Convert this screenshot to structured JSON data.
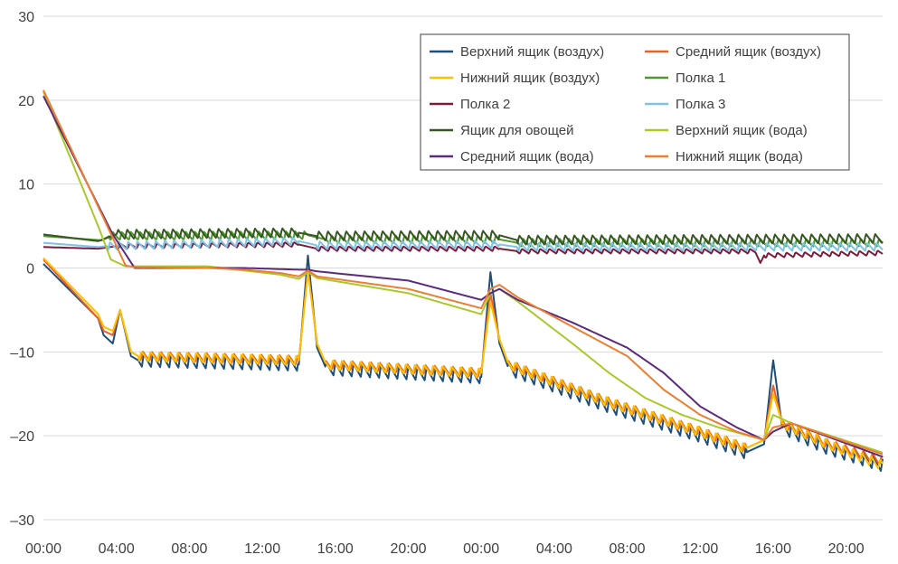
{
  "chart_data": {
    "type": "line",
    "title": "",
    "xlabel": "",
    "ylabel": "",
    "ylim": [
      -30,
      30
    ],
    "yticks": [
      -30,
      -20,
      -10,
      0,
      10,
      20,
      30
    ],
    "x_hours_range": [
      0,
      46
    ],
    "x_tick_labels": [
      "00:00",
      "04:00",
      "08:00",
      "12:00",
      "16:00",
      "20:00",
      "00:00",
      "04:00",
      "08:00",
      "12:00",
      "16:00",
      "20:00"
    ],
    "grid": "horizontal",
    "legend_placement": "top-right",
    "series": [
      {
        "name": "Верхний ящик (воздух)",
        "color": "#1f4e79",
        "points": [
          [
            0,
            0.5
          ],
          [
            3,
            -6
          ],
          [
            3.3,
            -8
          ],
          [
            3.8,
            -9
          ],
          [
            4.2,
            -5
          ],
          [
            4.8,
            -10.5
          ],
          [
            5.2,
            -11
          ],
          [
            14,
            -11.5
          ],
          [
            14.5,
            1.5
          ],
          [
            15,
            -9.5
          ],
          [
            15.5,
            -12
          ],
          [
            24,
            -13
          ],
          [
            24.5,
            -0.5
          ],
          [
            25,
            -9
          ],
          [
            25.5,
            -12
          ],
          [
            31,
            -16.5
          ],
          [
            36,
            -20
          ],
          [
            38.5,
            -22
          ],
          [
            39.5,
            -21
          ],
          [
            40,
            -11
          ],
          [
            40.5,
            -19
          ],
          [
            43,
            -21.5
          ],
          [
            46,
            -23.5
          ]
        ],
        "osc": 1.5,
        "osc_ranges": [
          [
            5.2,
            14
          ],
          [
            15.5,
            24
          ],
          [
            25.5,
            38.5
          ],
          [
            40.5,
            46
          ]
        ]
      },
      {
        "name": "Средний ящик (воздух)",
        "color": "#e8622a",
        "points": [
          [
            0,
            1
          ],
          [
            3,
            -6
          ],
          [
            3.3,
            -7.5
          ],
          [
            3.8,
            -8
          ],
          [
            4.2,
            -5
          ],
          [
            4.8,
            -10
          ],
          [
            5.2,
            -10.5
          ],
          [
            14,
            -11
          ],
          [
            14.5,
            -0.3
          ],
          [
            15,
            -9
          ],
          [
            15.5,
            -11.5
          ],
          [
            24,
            -12.5
          ],
          [
            24.5,
            -3
          ],
          [
            25,
            -8.5
          ],
          [
            25.5,
            -11.5
          ],
          [
            31,
            -16
          ],
          [
            36,
            -19.5
          ],
          [
            38.5,
            -21.5
          ],
          [
            39.5,
            -20.5
          ],
          [
            40,
            -14
          ],
          [
            40.5,
            -18.5
          ],
          [
            43,
            -21
          ],
          [
            46,
            -23
          ]
        ],
        "osc": 1.2,
        "osc_ranges": [
          [
            5.2,
            14
          ],
          [
            15.5,
            24
          ],
          [
            25.5,
            38.5
          ],
          [
            40.5,
            46
          ]
        ]
      },
      {
        "name": "Нижний ящик (воздух)",
        "color": "#ffc000",
        "points": [
          [
            0,
            1.2
          ],
          [
            3,
            -5.5
          ],
          [
            3.3,
            -7
          ],
          [
            3.8,
            -7.5
          ],
          [
            4.2,
            -5
          ],
          [
            4.8,
            -10
          ],
          [
            5.2,
            -10.5
          ],
          [
            14,
            -11
          ],
          [
            14.5,
            -0.5
          ],
          [
            15,
            -9
          ],
          [
            15.5,
            -11.5
          ],
          [
            24,
            -12.5
          ],
          [
            24.5,
            -4
          ],
          [
            25,
            -8.5
          ],
          [
            25.5,
            -11.5
          ],
          [
            31,
            -16
          ],
          [
            36,
            -19.5
          ],
          [
            38.5,
            -21.5
          ],
          [
            39.5,
            -20.5
          ],
          [
            40,
            -15
          ],
          [
            40.5,
            -18.5
          ],
          [
            43,
            -21
          ],
          [
            46,
            -23.5
          ]
        ],
        "osc": 1.2,
        "osc_ranges": [
          [
            5.2,
            14
          ],
          [
            15.5,
            24
          ],
          [
            25.5,
            38.5
          ],
          [
            40.5,
            46
          ]
        ]
      },
      {
        "name": "Полка 1",
        "color": "#4e9a2b",
        "points": [
          [
            0,
            3.8
          ],
          [
            3.2,
            3.3
          ],
          [
            3.6,
            3.8
          ],
          [
            14.5,
            3.9
          ],
          [
            15.5,
            3.4
          ],
          [
            25,
            3.4
          ],
          [
            26,
            3
          ],
          [
            46,
            3
          ]
        ],
        "osc": 1.0,
        "osc_ranges": [
          [
            3.6,
            14.5
          ],
          [
            15.5,
            25
          ],
          [
            26,
            46
          ]
        ]
      },
      {
        "name": "Полка 2",
        "color": "#7b1c3c",
        "points": [
          [
            0,
            2.5
          ],
          [
            3,
            2.3
          ],
          [
            4,
            2.6
          ],
          [
            14,
            2.8
          ],
          [
            15,
            2.3
          ],
          [
            25,
            2.3
          ],
          [
            26,
            2
          ],
          [
            39,
            2
          ],
          [
            39.3,
            0.6
          ],
          [
            39.5,
            1.5
          ],
          [
            46,
            1.8
          ]
        ],
        "osc": 0.6,
        "osc_ranges": [
          [
            4,
            14
          ],
          [
            15,
            25
          ],
          [
            26,
            39
          ],
          [
            39.5,
            46
          ]
        ]
      },
      {
        "name": "Полка 3",
        "color": "#7ec3e6",
        "points": [
          [
            0,
            3
          ],
          [
            3,
            2.5
          ],
          [
            3.5,
            2.6
          ],
          [
            14,
            3.2
          ],
          [
            15,
            2.7
          ],
          [
            25,
            2.8
          ],
          [
            26,
            2.5
          ],
          [
            46,
            2.5
          ]
        ],
        "osc": 0.9,
        "osc_ranges": [
          [
            3.5,
            14
          ],
          [
            15,
            25
          ],
          [
            26,
            46
          ]
        ]
      },
      {
        "name": "Ящик для овощей",
        "color": "#375623",
        "points": [
          [
            0,
            4
          ],
          [
            3,
            3.2
          ],
          [
            4,
            4
          ],
          [
            14,
            4.2
          ],
          [
            15,
            3.8
          ],
          [
            25,
            3.9
          ],
          [
            26,
            3.3
          ],
          [
            46,
            3.5
          ]
        ],
        "osc": 1.2,
        "osc_ranges": [
          [
            4,
            14
          ],
          [
            15,
            25
          ],
          [
            26,
            46
          ]
        ]
      },
      {
        "name": "Верхний ящик (вода)",
        "color": "#a9c92a",
        "points": [
          [
            0,
            21
          ],
          [
            3,
            5
          ],
          [
            3.7,
            1
          ],
          [
            4.5,
            0.2
          ],
          [
            9,
            0.2
          ],
          [
            11,
            -0.3
          ],
          [
            13,
            -0.8
          ],
          [
            14,
            -1.3
          ],
          [
            14.5,
            -0.5
          ],
          [
            15,
            -1.2
          ],
          [
            20,
            -3
          ],
          [
            24,
            -5.5
          ],
          [
            24.5,
            -3
          ],
          [
            25,
            -2.5
          ],
          [
            26,
            -4
          ],
          [
            29,
            -9
          ],
          [
            31,
            -12.5
          ],
          [
            33,
            -15.5
          ],
          [
            35,
            -17.5
          ],
          [
            37,
            -19
          ],
          [
            39.5,
            -20.5
          ],
          [
            40,
            -17.5
          ],
          [
            41,
            -18.5
          ],
          [
            46,
            -22
          ]
        ]
      },
      {
        "name": "Средний ящик (вода)",
        "color": "#5b2a7a",
        "points": [
          [
            0,
            20.5
          ],
          [
            3.8,
            4
          ],
          [
            5,
            0
          ],
          [
            11,
            0
          ],
          [
            14,
            -0.2
          ],
          [
            14.5,
            -0.2
          ],
          [
            15,
            -0.4
          ],
          [
            20,
            -1.5
          ],
          [
            24,
            -3.8
          ],
          [
            24.5,
            -3
          ],
          [
            25,
            -2.5
          ],
          [
            26,
            -3.8
          ],
          [
            29,
            -6.5
          ],
          [
            32,
            -9.5
          ],
          [
            34,
            -12.5
          ],
          [
            36,
            -16.5
          ],
          [
            38,
            -19
          ],
          [
            39.5,
            -20.5
          ],
          [
            40,
            -19.5
          ],
          [
            41,
            -18.5
          ],
          [
            46,
            -22.5
          ]
        ]
      },
      {
        "name": "Нижний ящик (вода)",
        "color": "#ed7d31",
        "points": [
          [
            0,
            21.2
          ],
          [
            3.5,
            5
          ],
          [
            4.5,
            0.3
          ],
          [
            5,
            0.1
          ],
          [
            9,
            0
          ],
          [
            11,
            -0.2
          ],
          [
            13,
            -0.6
          ],
          [
            14,
            -1
          ],
          [
            14.5,
            -0.3
          ],
          [
            15,
            -1
          ],
          [
            20,
            -2.5
          ],
          [
            24,
            -4.8
          ],
          [
            24.5,
            -2.5
          ],
          [
            25,
            -2
          ],
          [
            26,
            -3.5
          ],
          [
            29,
            -7
          ],
          [
            32,
            -10.5
          ],
          [
            34,
            -14.5
          ],
          [
            36,
            -17.5
          ],
          [
            38,
            -19.5
          ],
          [
            39.5,
            -20.5
          ],
          [
            40,
            -19
          ],
          [
            41,
            -18.5
          ],
          [
            46,
            -22.2
          ]
        ]
      }
    ]
  }
}
